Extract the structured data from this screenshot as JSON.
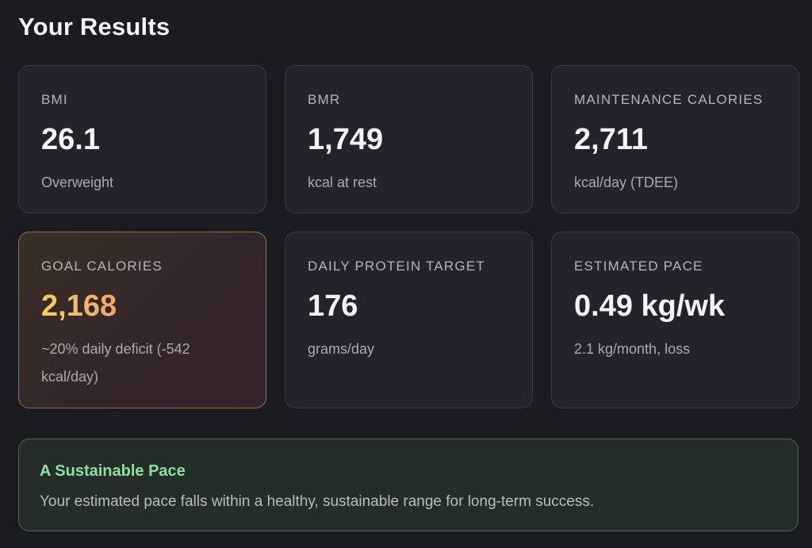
{
  "page": {
    "title": "Your Results"
  },
  "cards": [
    {
      "label": "BMI",
      "value": "26.1",
      "sub": "Overweight"
    },
    {
      "label": "BMR",
      "value": "1,749",
      "sub": "kcal at rest"
    },
    {
      "label": "MAINTENANCE CALORIES",
      "value": "2,711",
      "sub": "kcal/day (TDEE)"
    },
    {
      "label": "GOAL CALORIES",
      "value": "2,168",
      "sub": "~20% daily deficit (-542 kcal/day)"
    },
    {
      "label": "DAILY PROTEIN TARGET",
      "value": "176",
      "sub": "grams/day"
    },
    {
      "label": "ESTIMATED PACE",
      "value": "0.49 kg/wk",
      "sub": "2.1 kg/month, loss"
    }
  ],
  "banner": {
    "title": "A Sustainable Pace",
    "text": "Your estimated pace falls within a healthy, sustainable range for long-term success."
  },
  "colors": {
    "background": "#1b1c21",
    "card": "#23242b",
    "goal_accent_start": "#f6cf62",
    "goal_accent_end": "#f0a56a",
    "banner_title": "#8fe09a",
    "banner_border": "#4a6b52"
  }
}
